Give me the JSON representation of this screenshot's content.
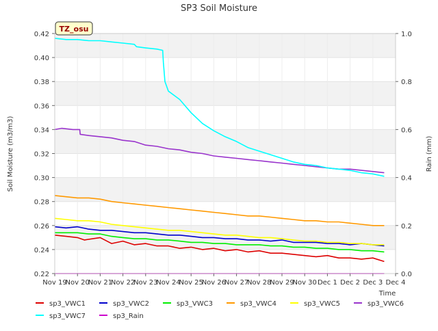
{
  "chart_data": {
    "type": "line",
    "title": "SP3 Soil Moisture",
    "xlabel": "Time",
    "ylabel": "Soil Moisture (m3/m3)",
    "y2label": "Rain (mm)",
    "station_tag": "TZ_osu",
    "xlim": [
      0,
      15
    ],
    "ylim": [
      0.22,
      0.42
    ],
    "y2lim": [
      0.0,
      1.0
    ],
    "grid": true,
    "legend_position": "bottom",
    "x_ticks": [
      {
        "x": 0,
        "label": "Nov 19"
      },
      {
        "x": 1,
        "label": "Nov 20"
      },
      {
        "x": 2,
        "label": "Nov 21"
      },
      {
        "x": 3,
        "label": "Nov 22"
      },
      {
        "x": 4,
        "label": "Nov 23"
      },
      {
        "x": 5,
        "label": "Nov 24"
      },
      {
        "x": 6,
        "label": "Nov 25"
      },
      {
        "x": 7,
        "label": "Nov 26"
      },
      {
        "x": 8,
        "label": "Nov 27"
      },
      {
        "x": 9,
        "label": "Nov 28"
      },
      {
        "x": 10,
        "label": "Nov 29"
      },
      {
        "x": 11,
        "label": "Nov 30"
      },
      {
        "x": 12,
        "label": "Dec 1"
      },
      {
        "x": 13,
        "label": "Dec 2"
      },
      {
        "x": 14,
        "label": "Dec 3"
      },
      {
        "x": 15,
        "label": "Dec 4"
      }
    ],
    "y_ticks": [
      {
        "v": 0.22,
        "label": "0.22"
      },
      {
        "v": 0.24,
        "label": "0.24"
      },
      {
        "v": 0.26,
        "label": "0.26"
      },
      {
        "v": 0.28,
        "label": "0.28"
      },
      {
        "v": 0.3,
        "label": "0.30"
      },
      {
        "v": 0.32,
        "label": "0.32"
      },
      {
        "v": 0.34,
        "label": "0.34"
      },
      {
        "v": 0.36,
        "label": "0.36"
      },
      {
        "v": 0.38,
        "label": "0.38"
      },
      {
        "v": 0.4,
        "label": "0.40"
      },
      {
        "v": 0.42,
        "label": "0.42"
      }
    ],
    "y2_ticks": [
      {
        "v": 0.0,
        "label": "0.0"
      },
      {
        "v": 0.2,
        "label": "0.2"
      },
      {
        "v": 0.4,
        "label": "0.4"
      },
      {
        "v": 0.6,
        "label": "0.6"
      },
      {
        "v": 0.8,
        "label": "0.8"
      },
      {
        "v": 1.0,
        "label": "1.0"
      }
    ],
    "series": [
      {
        "name": "sp3_VWC1",
        "color": "#dd0000",
        "axis": "left",
        "x": [
          0,
          0.5,
          1,
          1.3,
          2,
          2.5,
          3,
          3.5,
          4,
          4.5,
          5,
          5.5,
          6,
          6.5,
          7,
          7.5,
          8,
          8.5,
          9,
          9.5,
          10,
          10.5,
          11,
          11.5,
          12,
          12.5,
          13,
          13.5,
          14,
          14.5
        ],
        "y": [
          0.252,
          0.251,
          0.25,
          0.248,
          0.25,
          0.245,
          0.247,
          0.244,
          0.245,
          0.243,
          0.243,
          0.241,
          0.242,
          0.24,
          0.241,
          0.239,
          0.24,
          0.238,
          0.239,
          0.237,
          0.237,
          0.236,
          0.235,
          0.234,
          0.235,
          0.233,
          0.233,
          0.232,
          0.233,
          0.23
        ]
      },
      {
        "name": "sp3_VWC2",
        "color": "#0000cc",
        "axis": "left",
        "x": [
          0,
          0.5,
          1,
          1.5,
          2,
          2.5,
          3,
          3.5,
          4,
          4.5,
          5,
          5.5,
          6,
          6.5,
          7,
          7.5,
          8,
          8.5,
          9,
          9.5,
          10,
          10.5,
          11,
          11.5,
          12,
          12.5,
          13,
          13.5,
          14,
          14.5
        ],
        "y": [
          0.259,
          0.258,
          0.259,
          0.257,
          0.256,
          0.256,
          0.255,
          0.254,
          0.254,
          0.253,
          0.252,
          0.252,
          0.251,
          0.25,
          0.25,
          0.249,
          0.249,
          0.248,
          0.248,
          0.247,
          0.248,
          0.246,
          0.246,
          0.246,
          0.245,
          0.245,
          0.244,
          0.245,
          0.244,
          0.243
        ]
      },
      {
        "name": "sp3_VWC3",
        "color": "#00ee00",
        "axis": "left",
        "x": [
          0,
          0.5,
          1,
          1.5,
          2,
          2.5,
          3,
          3.5,
          4,
          4.5,
          5,
          5.5,
          6,
          6.5,
          7,
          7.5,
          8,
          8.5,
          9,
          9.5,
          10,
          10.5,
          11,
          11.5,
          12,
          12.5,
          13,
          13.5,
          14,
          14.5
        ],
        "y": [
          0.254,
          0.254,
          0.254,
          0.253,
          0.253,
          0.251,
          0.25,
          0.249,
          0.249,
          0.248,
          0.248,
          0.247,
          0.246,
          0.246,
          0.245,
          0.245,
          0.244,
          0.244,
          0.244,
          0.243,
          0.243,
          0.242,
          0.242,
          0.241,
          0.241,
          0.24,
          0.24,
          0.239,
          0.239,
          0.238
        ]
      },
      {
        "name": "sp3_VWC4",
        "color": "#ff9900",
        "axis": "left",
        "x": [
          0,
          0.5,
          1,
          1.5,
          2,
          2.5,
          3,
          3.5,
          4,
          4.5,
          5,
          5.5,
          6,
          6.5,
          7,
          7.5,
          8,
          8.5,
          9,
          9.5,
          10,
          10.5,
          11,
          11.5,
          12,
          12.5,
          13,
          13.5,
          14,
          14.5
        ],
        "y": [
          0.285,
          0.284,
          0.283,
          0.283,
          0.282,
          0.28,
          0.279,
          0.278,
          0.277,
          0.276,
          0.275,
          0.274,
          0.273,
          0.272,
          0.271,
          0.27,
          0.269,
          0.268,
          0.268,
          0.267,
          0.266,
          0.265,
          0.264,
          0.264,
          0.263,
          0.263,
          0.262,
          0.261,
          0.26,
          0.26
        ]
      },
      {
        "name": "sp3_VWC5",
        "color": "#ffff00",
        "axis": "left",
        "x": [
          0,
          0.5,
          1,
          1.5,
          2,
          2.5,
          3,
          3.5,
          4,
          4.5,
          5,
          5.5,
          6,
          6.5,
          7,
          7.5,
          8,
          8.5,
          9,
          9.5,
          10,
          10.5,
          11,
          11.5,
          12,
          12.5,
          13,
          13.5,
          14,
          14.5
        ],
        "y": [
          0.266,
          0.265,
          0.264,
          0.264,
          0.263,
          0.261,
          0.26,
          0.259,
          0.258,
          0.257,
          0.256,
          0.256,
          0.255,
          0.254,
          0.253,
          0.252,
          0.252,
          0.251,
          0.25,
          0.25,
          0.249,
          0.248,
          0.247,
          0.247,
          0.246,
          0.246,
          0.245,
          0.245,
          0.244,
          0.244
        ]
      },
      {
        "name": "sp3_VWC6",
        "color": "#9933cc",
        "axis": "left",
        "x": [
          0,
          0.3,
          0.8,
          1.1,
          1.12,
          1.5,
          2,
          2.5,
          3,
          3.5,
          4,
          4.5,
          5,
          5.5,
          6,
          6.5,
          7,
          7.5,
          8,
          8.5,
          9,
          9.5,
          10,
          10.5,
          11,
          11.5,
          12,
          12.5,
          13,
          13.5,
          14,
          14.5
        ],
        "y": [
          0.34,
          0.341,
          0.34,
          0.34,
          0.336,
          0.335,
          0.334,
          0.333,
          0.331,
          0.33,
          0.327,
          0.326,
          0.324,
          0.323,
          0.321,
          0.32,
          0.318,
          0.317,
          0.316,
          0.315,
          0.314,
          0.313,
          0.312,
          0.311,
          0.31,
          0.309,
          0.308,
          0.307,
          0.307,
          0.306,
          0.305,
          0.304
        ]
      },
      {
        "name": "sp3_VWC7",
        "color": "#00ffff",
        "axis": "left",
        "x": [
          0,
          0.5,
          1,
          1.5,
          2,
          2.5,
          3,
          3.5,
          3.6,
          4,
          4.5,
          4.75,
          4.78,
          4.85,
          5,
          5.5,
          6,
          6.5,
          7,
          7.5,
          8,
          8.5,
          9,
          9.5,
          10,
          10.5,
          11,
          11.5,
          12,
          12.5,
          13,
          13.5,
          14,
          14.5
        ],
        "y": [
          0.416,
          0.415,
          0.415,
          0.414,
          0.414,
          0.413,
          0.412,
          0.411,
          0.409,
          0.408,
          0.407,
          0.406,
          0.396,
          0.38,
          0.372,
          0.365,
          0.354,
          0.345,
          0.339,
          0.334,
          0.33,
          0.325,
          0.322,
          0.319,
          0.316,
          0.313,
          0.311,
          0.31,
          0.308,
          0.307,
          0.306,
          0.304,
          0.303,
          0.301
        ]
      },
      {
        "name": "sp3_Rain",
        "color": "#cc00cc",
        "axis": "right",
        "x": [
          0,
          14.5
        ],
        "y": [
          0.0,
          0.0
        ]
      }
    ]
  }
}
